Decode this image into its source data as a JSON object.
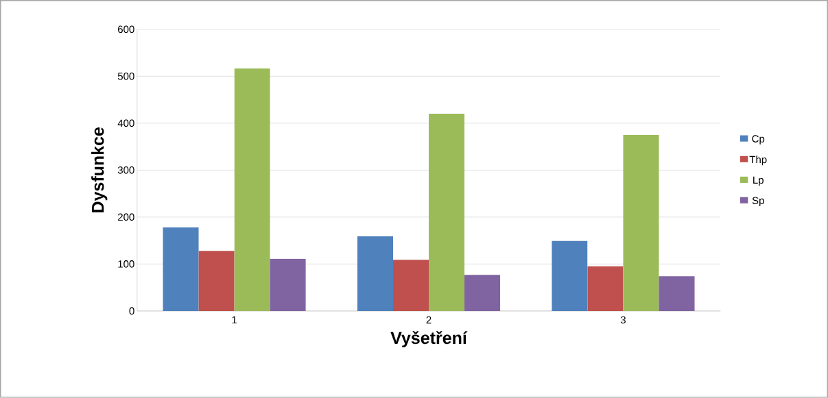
{
  "chart_data": {
    "type": "bar",
    "xlabel": "Vyšetření",
    "ylabel": "Dysfunkce",
    "categories": [
      "1",
      "2",
      "3"
    ],
    "series": [
      {
        "name": "Cp",
        "color": "#4f81bd",
        "values": [
          178,
          159,
          149
        ]
      },
      {
        "name": "Thp",
        "color": "#c0504d",
        "values": [
          128,
          109,
          95
        ]
      },
      {
        "name": "Lp",
        "color": "#9bbb59",
        "values": [
          517,
          420,
          375
        ]
      },
      {
        "name": "Sp",
        "color": "#8064a2",
        "values": [
          111,
          77,
          74
        ]
      }
    ],
    "ylim": [
      0,
      600
    ],
    "yticks": [
      0,
      100,
      200,
      300,
      400,
      500,
      600
    ],
    "grid": "y",
    "legend": "right"
  }
}
